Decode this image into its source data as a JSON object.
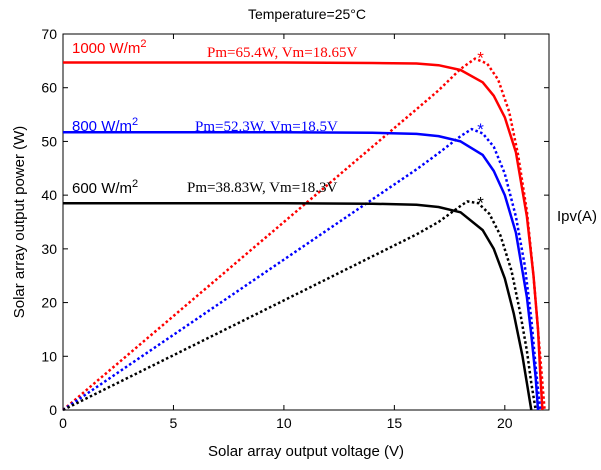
{
  "chart_data": {
    "type": "line",
    "title": "Temperature=25°C",
    "xlabel": "Solar array output voltage (V)",
    "ylabel": "Solar array output power (W)",
    "right_label": "Ipv(A)",
    "xlim": [
      0,
      22
    ],
    "ylim": [
      0,
      70
    ],
    "xticks": [
      "0",
      "5",
      "10",
      "15",
      "20"
    ],
    "yticks": [
      "0",
      "10",
      "20",
      "30",
      "40",
      "50",
      "60",
      "70"
    ],
    "grid": false,
    "colors": {
      "1000": "#ff0000",
      "800": "#0000ff",
      "600": "#000000"
    },
    "series": [
      {
        "name": "1000 W/m2",
        "label_main": "1000 W/m",
        "label_sup": "2",
        "annotation": "Pm=65.4W, Vm=18.65V",
        "color": "#ff0000",
        "current": {
          "x": [
            0,
            5,
            10,
            14,
            16,
            17,
            18,
            19,
            19.5,
            20,
            20.5,
            21,
            21.3,
            21.5,
            21.6,
            21.7
          ],
          "y": [
            64.7,
            64.7,
            64.7,
            64.6,
            64.5,
            64.2,
            63.3,
            61.0,
            58.5,
            54.5,
            48.0,
            36.0,
            25.0,
            15.0,
            7.0,
            0
          ]
        },
        "power": {
          "x": [
            0,
            5,
            10,
            14,
            16,
            17,
            18,
            18.65,
            19.2,
            19.7,
            20.2,
            20.6,
            21.0,
            21.3,
            21.5,
            21.7,
            21.8
          ],
          "y": [
            0,
            17.5,
            35.0,
            49.0,
            56.0,
            59.5,
            63.5,
            65.4,
            64.5,
            61.5,
            55.5,
            47.5,
            37.0,
            25.0,
            15.0,
            5.0,
            0
          ]
        },
        "mpp": {
          "x": 18.9,
          "y": 66.2
        }
      },
      {
        "name": "800 W/m2",
        "label_main": "800 W/m",
        "label_sup": "2",
        "annotation": "Pm=52.3W, Vm=18.5V",
        "color": "#0000ff",
        "current": {
          "x": [
            0,
            5,
            10,
            14,
            16,
            17,
            18,
            19,
            19.5,
            20,
            20.5,
            21,
            21.2,
            21.4,
            21.5
          ],
          "y": [
            51.7,
            51.7,
            51.7,
            51.6,
            51.4,
            51.0,
            50.0,
            47.5,
            44.5,
            40.0,
            33.0,
            21.0,
            14.0,
            6.0,
            0
          ]
        },
        "power": {
          "x": [
            0,
            5,
            10,
            14,
            16,
            17,
            18,
            18.5,
            19.0,
            19.5,
            20.0,
            20.5,
            20.9,
            21.2,
            21.4,
            21.6
          ],
          "y": [
            0,
            14.0,
            28.0,
            39.2,
            44.8,
            47.8,
            51.0,
            52.3,
            51.5,
            49.0,
            44.0,
            36.0,
            27.0,
            17.0,
            8.0,
            0
          ]
        },
        "mpp": {
          "x": 18.9,
          "y": 52.9
        }
      },
      {
        "name": "600 W/m2",
        "label_main": "600 W/m",
        "label_sup": "2",
        "annotation": "Pm=38.83W, Vm=18.3V",
        "color": "#000000",
        "current": {
          "x": [
            0,
            5,
            10,
            14,
            16,
            17,
            18,
            19,
            19.5,
            20,
            20.4,
            20.8,
            21.0,
            21.2
          ],
          "y": [
            38.5,
            38.5,
            38.5,
            38.4,
            38.2,
            37.8,
            36.8,
            33.5,
            30.0,
            24.5,
            18.0,
            10.0,
            5.0,
            0
          ]
        },
        "power": {
          "x": [
            0,
            5,
            10,
            14,
            16,
            17,
            18,
            18.3,
            18.8,
            19.3,
            19.8,
            20.3,
            20.7,
            21.0,
            21.2,
            21.4
          ],
          "y": [
            0,
            10.2,
            20.4,
            28.6,
            32.7,
            35.0,
            38.0,
            38.83,
            38.5,
            36.5,
            32.5,
            26.0,
            18.0,
            11.0,
            5.0,
            0
          ]
        },
        "mpp": {
          "x": 18.9,
          "y": 39.2
        }
      }
    ]
  }
}
